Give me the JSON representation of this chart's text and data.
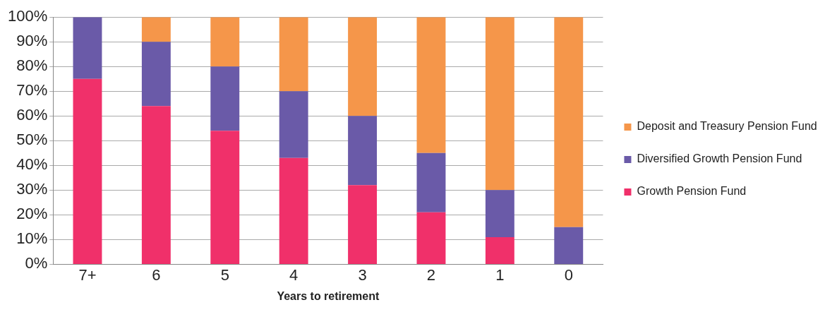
{
  "chart_data": {
    "type": "bar",
    "xlabel": "Years to retirement",
    "categories": [
      "7+",
      "6",
      "5",
      "4",
      "3",
      "2",
      "1",
      "0"
    ],
    "stacked": true,
    "series": [
      {
        "name": "Growth Pension Fund",
        "color": "#f0306a",
        "values": [
          75,
          64,
          54,
          43,
          32,
          21,
          11,
          0
        ]
      },
      {
        "name": "Diversified Growth Pension Fund",
        "color": "#6a5aa8",
        "values": [
          25,
          26,
          26,
          27,
          28,
          24,
          19,
          15
        ]
      },
      {
        "name": "Deposit and Treasury Pension Fund",
        "color": "#f5964a",
        "values": [
          0,
          10,
          20,
          30,
          40,
          55,
          70,
          85
        ]
      }
    ],
    "ylim": [
      0,
      100
    ],
    "yticks": [
      {
        "value": 0,
        "label": "0%"
      },
      {
        "value": 10,
        "label": "10%"
      },
      {
        "value": 20,
        "label": "20%"
      },
      {
        "value": 30,
        "label": "30%"
      },
      {
        "value": 40,
        "label": "40%"
      },
      {
        "value": 50,
        "label": "50%"
      },
      {
        "value": 60,
        "label": "60%"
      },
      {
        "value": 70,
        "label": "70%"
      },
      {
        "value": 80,
        "label": "80%"
      },
      {
        "value": 90,
        "label": "90%"
      },
      {
        "value": 100,
        "label": "100%"
      }
    ],
    "grid": "y",
    "legend": "right"
  }
}
